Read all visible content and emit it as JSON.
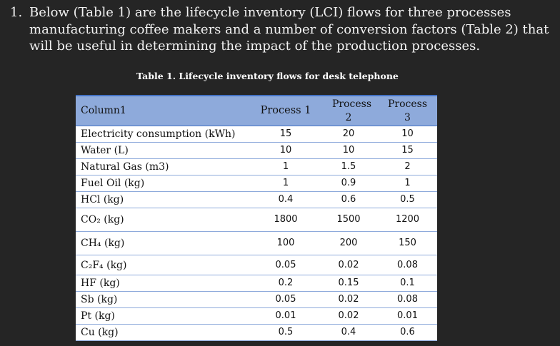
{
  "question": {
    "number": "1.",
    "text": "Below (Table 1) are the lifecycle inventory (LCI) flows for three processes manufacturing coffee makers and a number of conversion factors (Table 2) that will be useful in determining the impact of the production processes."
  },
  "table": {
    "title": "Table 1. Lifecycle inventory flows for desk telephone",
    "headers": [
      "Column1",
      "Process 1",
      "Process 2",
      "Process 3"
    ],
    "rows": [
      {
        "name": "Electricity consumption (kWh)",
        "values": [
          "15",
          "20",
          "10"
        ]
      },
      {
        "name": "Water (L)",
        "values": [
          "10",
          "10",
          "15"
        ]
      },
      {
        "name": "Natural Gas (m3)",
        "values": [
          "1",
          "1.5",
          "2"
        ]
      },
      {
        "name": "Fuel Oil (kg)",
        "values": [
          "1",
          "0.9",
          "1"
        ]
      },
      {
        "name": "HCl (kg)",
        "values": [
          "0.4",
          "0.6",
          "0.5"
        ]
      },
      {
        "name": "CO₂ (kg)",
        "values": [
          "1800",
          "1500",
          "1200"
        ]
      },
      {
        "name": "CH₄ (kg)",
        "values": [
          "100",
          "200",
          "150"
        ]
      },
      {
        "name": "C₂F₄ (kg)",
        "values": [
          "0.05",
          "0.02",
          "0.08"
        ]
      },
      {
        "name": "HF (kg)",
        "values": [
          "0.2",
          "0.15",
          "0.1"
        ]
      },
      {
        "name": "Sb (kg)",
        "values": [
          "0.05",
          "0.02",
          "0.08"
        ]
      },
      {
        "name": "Pt (kg)",
        "values": [
          "0.01",
          "0.02",
          "0.01"
        ]
      },
      {
        "name": "Cu (kg)",
        "values": [
          "0.5",
          "0.4",
          "0.6"
        ]
      }
    ]
  }
}
